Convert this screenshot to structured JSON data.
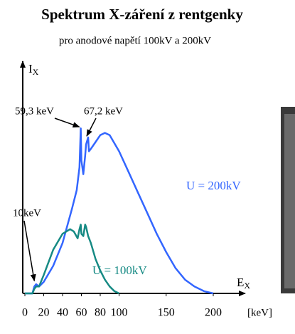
{
  "chart_data": {
    "type": "line",
    "title": "Spektrum X-záření z rentgenky",
    "subtitle": "pro anodové napětí 100kV a 200kV",
    "y_label": {
      "text": "I",
      "sub": "X"
    },
    "x_label": {
      "text": "E",
      "sub": "X"
    },
    "x_unit": "[keV]",
    "xlim": [
      0,
      200
    ],
    "ylim": [
      0,
      100
    ],
    "xticks": [
      0,
      20,
      40,
      60,
      80,
      100,
      150,
      200
    ],
    "series": [
      {
        "name": "U = 200kV",
        "color": "#3366ff",
        "x": [
          0,
          8,
          10,
          12,
          15,
          20,
          30,
          40,
          50,
          55,
          58,
          59.3,
          60,
          62,
          64,
          65,
          67.2,
          68,
          70,
          75,
          80,
          85,
          90,
          100,
          110,
          120,
          130,
          140,
          150,
          160,
          170,
          180,
          190,
          200
        ],
        "values": [
          0,
          0,
          3,
          4,
          3,
          5,
          12,
          22,
          37,
          45,
          55,
          72,
          58,
          52,
          60,
          65,
          68,
          62,
          63,
          66,
          69,
          70,
          69,
          62,
          53,
          44,
          35,
          26,
          18,
          11,
          6,
          3,
          1,
          0
        ]
      },
      {
        "name": "U = 100kV",
        "color": "#168a84",
        "x": [
          0,
          8,
          10,
          12,
          15,
          20,
          30,
          40,
          48,
          52,
          56,
          58,
          59.3,
          60,
          62,
          64,
          65,
          67.2,
          70,
          75,
          80,
          85,
          90,
          95,
          100
        ],
        "values": [
          0,
          0,
          2,
          3,
          3,
          8,
          19,
          26,
          28,
          27,
          24,
          28,
          30,
          26,
          25,
          30,
          29,
          25,
          22,
          15,
          10,
          6,
          3,
          1,
          0
        ]
      }
    ],
    "annotations": [
      {
        "text": "59,3 keV",
        "x": 59.3,
        "y": 72
      },
      {
        "text": "67,2 keV",
        "x": 67.2,
        "y": 68
      },
      {
        "text": "10keV",
        "x": 10,
        "y": 3
      }
    ]
  }
}
